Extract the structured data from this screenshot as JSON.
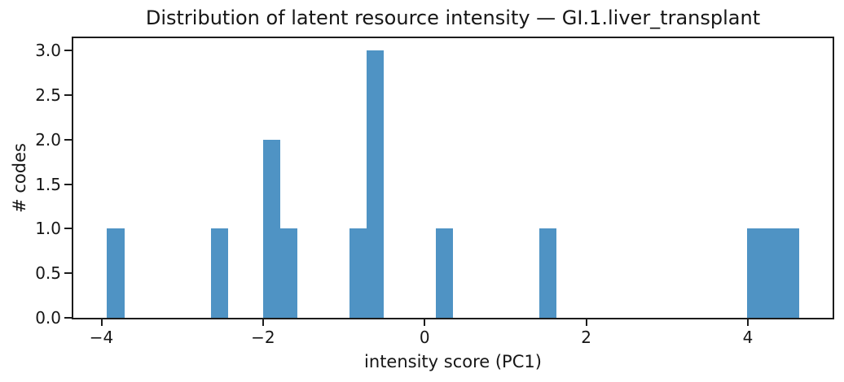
{
  "chart_data": {
    "type": "bar",
    "subtype": "histogram",
    "title": "Distribution of latent resource intensity — GI.1.liver_transplant",
    "xlabel": "intensity score (PC1)",
    "ylabel": "# codes",
    "bar_color": "#4f93c4",
    "axis_color": "#1c1c1c",
    "grid": false,
    "legend": false,
    "xlim": [
      -4.358,
      5.058
    ],
    "ylim": [
      0,
      3.15
    ],
    "xticks": [
      {
        "value": -4,
        "label": "−4"
      },
      {
        "value": -2,
        "label": "−2"
      },
      {
        "value": 0,
        "label": "0"
      },
      {
        "value": 2,
        "label": "2"
      },
      {
        "value": 4,
        "label": "4"
      }
    ],
    "yticks": [
      {
        "value": 0.0,
        "label": "0.0"
      },
      {
        "value": 0.5,
        "label": "0.5"
      },
      {
        "value": 1.0,
        "label": "1.0"
      },
      {
        "value": 1.5,
        "label": "1.5"
      },
      {
        "value": 2.0,
        "label": "2.0"
      },
      {
        "value": 2.5,
        "label": "2.5"
      },
      {
        "value": 3.0,
        "label": "3.0"
      }
    ],
    "bins": [
      {
        "x0": -3.93,
        "x1": -3.716,
        "count": 1
      },
      {
        "x0": -2.646,
        "x1": -2.432,
        "count": 1
      },
      {
        "x0": -2.004,
        "x1": -1.79,
        "count": 2
      },
      {
        "x0": -1.79,
        "x1": -1.576,
        "count": 1
      },
      {
        "x0": -0.934,
        "x1": -0.72,
        "count": 1
      },
      {
        "x0": -0.72,
        "x1": -0.506,
        "count": 3
      },
      {
        "x0": 0.136,
        "x1": 0.35,
        "count": 1
      },
      {
        "x0": 1.42,
        "x1": 1.634,
        "count": 1
      },
      {
        "x0": 3.988,
        "x1": 4.202,
        "count": 1
      },
      {
        "x0": 4.202,
        "x1": 4.416,
        "count": 1
      },
      {
        "x0": 4.416,
        "x1": 4.63,
        "count": 1
      }
    ],
    "total_codes": 14
  }
}
